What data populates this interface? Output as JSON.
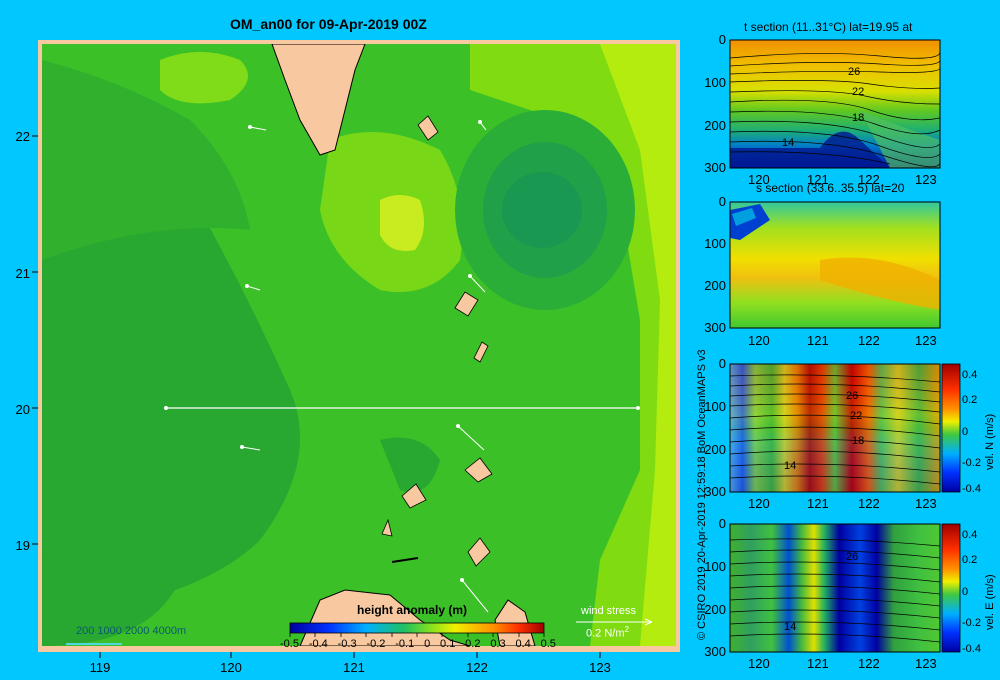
{
  "main_map": {
    "title": "OM_an00 for 09-Apr-2019 00Z",
    "x_ticks": [
      "119",
      "120",
      "121",
      "122",
      "123"
    ],
    "y_ticks": [
      "22",
      "21",
      "20",
      "19"
    ],
    "colorbar_title": "height anomaly (m)",
    "colorbar_ticks": [
      "-0.5",
      "-0.4",
      "-0.3",
      "-0.2",
      "-0.1",
      "0",
      "0.1",
      "0.2",
      "0.3",
      "0.4",
      "0.5"
    ],
    "depth_legend": "200  1000  2000  4000m",
    "wind_stress_label": "wind stress",
    "wind_stress_value": "0.2 N/m",
    "wind_stress_exp": "2"
  },
  "credit": "© CSIRO 2019   20-Apr-2019 12:59:18 BoM OceanMAPS v3",
  "panels": [
    {
      "title": "t section (11..31°C) lat=19.95 at",
      "y_ticks": [
        "0",
        "100",
        "200",
        "300"
      ],
      "x_ticks": [
        "120",
        "121",
        "122",
        "123"
      ],
      "contour_labels": [
        "26",
        "22",
        "18",
        "14"
      ],
      "colorbar": null
    },
    {
      "title": "s section (33.6..35.5) lat=20",
      "y_ticks": [
        "0",
        "100",
        "200",
        "300"
      ],
      "x_ticks": [
        "120",
        "121",
        "122",
        "123"
      ],
      "contour_labels": [],
      "colorbar": null
    },
    {
      "title": "",
      "y_ticks": [
        "0",
        "100",
        "200",
        "300"
      ],
      "x_ticks": [
        "120",
        "121",
        "122",
        "123"
      ],
      "contour_labels": [
        "26",
        "22",
        "18",
        "14"
      ],
      "colorbar": {
        "label": "vel. N (m/s)",
        "ticks": [
          "0.4",
          "0.2",
          "0",
          "-0.2",
          "-0.4"
        ]
      }
    },
    {
      "title": "",
      "y_ticks": [
        "0",
        "100",
        "200",
        "300"
      ],
      "x_ticks": [
        "120",
        "121",
        "122",
        "123"
      ],
      "contour_labels": [
        "26",
        "14"
      ],
      "colorbar": {
        "label": "vel. E (m/s)",
        "ticks": [
          "0.4",
          "0.2",
          "0",
          "-0.2",
          "-0.4"
        ]
      }
    }
  ],
  "chart_data": [
    {
      "type": "heatmap",
      "title": "OM_an00 for 09-Apr-2019 00Z",
      "xlabel": "",
      "ylabel": "",
      "xlim": [
        118.5,
        123.5
      ],
      "ylim": [
        18.25,
        22.7
      ],
      "colorbar": {
        "label": "height anomaly (m)",
        "range": [
          -0.5,
          0.5
        ]
      },
      "section_line_lat": 20,
      "colors": {
        "low": "#28b030",
        "mid": "#38c020",
        "high": "#b8e818",
        "land": "#f8c8a0"
      }
    },
    {
      "type": "heatmap",
      "title": "t section (11..31°C) lat=19.95 at",
      "xlim": [
        119.5,
        123.2
      ],
      "ylim": [
        300,
        0
      ],
      "contour_labels": [
        26,
        22,
        18,
        14
      ]
    },
    {
      "type": "heatmap",
      "title": "s section (33.6..35.5) lat=20",
      "xlim": [
        119.5,
        123.2
      ],
      "ylim": [
        300,
        0
      ]
    },
    {
      "type": "heatmap",
      "title": "",
      "xlim": [
        119.5,
        123.2
      ],
      "ylim": [
        300,
        0
      ],
      "colorbar": {
        "label": "vel. N (m/s)",
        "range": [
          -0.4,
          0.4
        ]
      },
      "contour_labels": [
        26,
        22,
        18,
        14
      ]
    },
    {
      "type": "heatmap",
      "title": "",
      "xlim": [
        119.5,
        123.2
      ],
      "ylim": [
        300,
        0
      ],
      "colorbar": {
        "label": "vel. E (m/s)",
        "range": [
          -0.4,
          0.4
        ]
      },
      "contour_labels": [
        26,
        14
      ]
    }
  ]
}
